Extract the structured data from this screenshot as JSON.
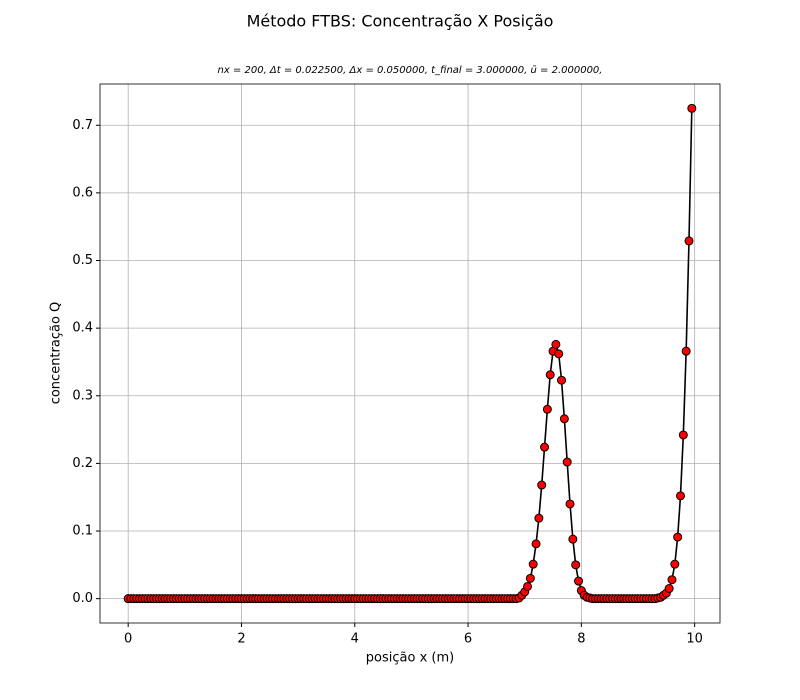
{
  "chart_data": {
    "type": "line",
    "title": "Método FTBS: Concentração X Posição",
    "subtitle": "nx = 200, Δt = 0.022500, Δx = 0.050000, t_final = 3.000000, ū = 2.000000,",
    "x_label": "posição x (m)",
    "y_label": "concentração Q",
    "xlim": [
      -0.4975,
      10.4475
    ],
    "ylim": [
      -0.036,
      0.761
    ],
    "xticks": [
      0,
      2,
      4,
      6,
      8,
      10
    ],
    "yticks": [
      {
        "value": 0,
        "label": "0.0"
      },
      0.1,
      0.2,
      0.3,
      0.4,
      0.5,
      0.6,
      0.7
    ],
    "grid": true,
    "line_color": "#000000",
    "marker_color": "#ff0000",
    "x": [
      0,
      0.05,
      0.1,
      0.15,
      0.2,
      0.25,
      0.3,
      0.35,
      0.4,
      0.45,
      0.5,
      0.55,
      0.6,
      0.65,
      0.7,
      0.75,
      0.8,
      0.85,
      0.9,
      0.95,
      1,
      1.05,
      1.1,
      1.15,
      1.2,
      1.25,
      1.3,
      1.35,
      1.4,
      1.45,
      1.5,
      1.55,
      1.6,
      1.65,
      1.7,
      1.75,
      1.8,
      1.85,
      1.9,
      1.95,
      2,
      2.05,
      2.1,
      2.15,
      2.2,
      2.25,
      2.3,
      2.35,
      2.4,
      2.45,
      2.5,
      2.55,
      2.6,
      2.65,
      2.7,
      2.75,
      2.8,
      2.85,
      2.9,
      2.95,
      3,
      3.05,
      3.1,
      3.15,
      3.2,
      3.25,
      3.3,
      3.35,
      3.4,
      3.45,
      3.5,
      3.55,
      3.6,
      3.65,
      3.7,
      3.75,
      3.8,
      3.85,
      3.9,
      3.95,
      4,
      4.05,
      4.1,
      4.15,
      4.2,
      4.25,
      4.3,
      4.35,
      4.4,
      4.45,
      4.5,
      4.55,
      4.6,
      4.65,
      4.7,
      4.75,
      4.8,
      4.85,
      4.9,
      4.95,
      5,
      5.05,
      5.1,
      5.15,
      5.2,
      5.25,
      5.3,
      5.35,
      5.4,
      5.45,
      5.5,
      5.55,
      5.6,
      5.65,
      5.7,
      5.75,
      5.8,
      5.85,
      5.9,
      5.95,
      6,
      6.05,
      6.1,
      6.15,
      6.2,
      6.25,
      6.3,
      6.35,
      6.4,
      6.45,
      6.5,
      6.55,
      6.6,
      6.65,
      6.7,
      6.75,
      6.8,
      6.85,
      6.9,
      6.95,
      7,
      7.05,
      7.1,
      7.15,
      7.2,
      7.25,
      7.3,
      7.35,
      7.4,
      7.45,
      7.5,
      7.55,
      7.6,
      7.65,
      7.7,
      7.75,
      7.8,
      7.85,
      7.9,
      7.95,
      8,
      8.05,
      8.1,
      8.15,
      8.2,
      8.25,
      8.3,
      8.35,
      8.4,
      8.45,
      8.5,
      8.55,
      8.6,
      8.65,
      8.7,
      8.75,
      8.8,
      8.85,
      8.9,
      8.95,
      9,
      9.05,
      9.1,
      9.15,
      9.2,
      9.25,
      9.3,
      9.35,
      9.4,
      9.45,
      9.5,
      9.55,
      9.6,
      9.65,
      9.7,
      9.75,
      9.8,
      9.85,
      9.9,
      9.95
    ],
    "values": [
      0,
      0,
      0,
      0,
      0,
      0,
      0,
      0,
      0,
      0,
      0,
      0,
      0,
      0,
      0,
      0,
      0,
      0,
      0,
      0,
      0,
      0,
      0,
      0,
      0,
      0,
      0,
      0,
      0,
      0,
      0,
      0,
      0,
      0,
      0,
      0,
      0,
      0,
      0,
      0,
      0,
      0,
      0,
      0,
      0,
      0,
      0,
      0,
      0,
      0,
      0,
      0,
      0,
      0,
      0,
      0,
      0,
      0,
      0,
      0,
      0,
      0,
      0,
      0,
      0,
      0,
      0,
      0,
      0,
      0,
      0,
      0,
      0,
      0,
      0,
      0,
      0,
      0,
      0,
      0,
      0,
      0,
      0,
      0,
      0,
      0,
      0,
      0,
      0,
      0,
      0,
      0,
      0,
      0,
      0,
      0,
      0,
      0,
      0,
      0,
      0,
      0,
      0,
      0,
      0,
      0,
      0,
      0,
      0,
      0,
      0,
      0,
      0,
      0,
      0,
      0,
      0,
      0,
      0,
      0,
      0,
      0,
      0,
      0,
      0,
      0,
      0,
      0,
      0,
      0,
      0,
      0,
      0,
      0,
      0,
      0,
      0,
      0,
      0.001,
      0.005,
      0.01,
      0.018,
      0.03,
      0.051,
      0.081,
      0.119,
      0.168,
      0.224,
      0.28,
      0.331,
      0.366,
      0.376,
      0.362,
      0.323,
      0.266,
      0.202,
      0.14,
      0.088,
      0.05,
      0.026,
      0.012,
      0.005,
      0.002,
      0.001,
      0,
      0,
      0,
      0,
      0,
      0,
      0,
      0,
      0,
      0,
      0,
      0,
      0,
      0,
      0,
      0,
      0,
      0,
      0,
      0,
      0,
      0,
      0,
      0.001,
      0.002,
      0.005,
      0.008,
      0.015,
      0.028,
      0.051,
      0.091,
      0.152,
      0.242,
      0.366,
      0.529,
      0.725
    ]
  }
}
